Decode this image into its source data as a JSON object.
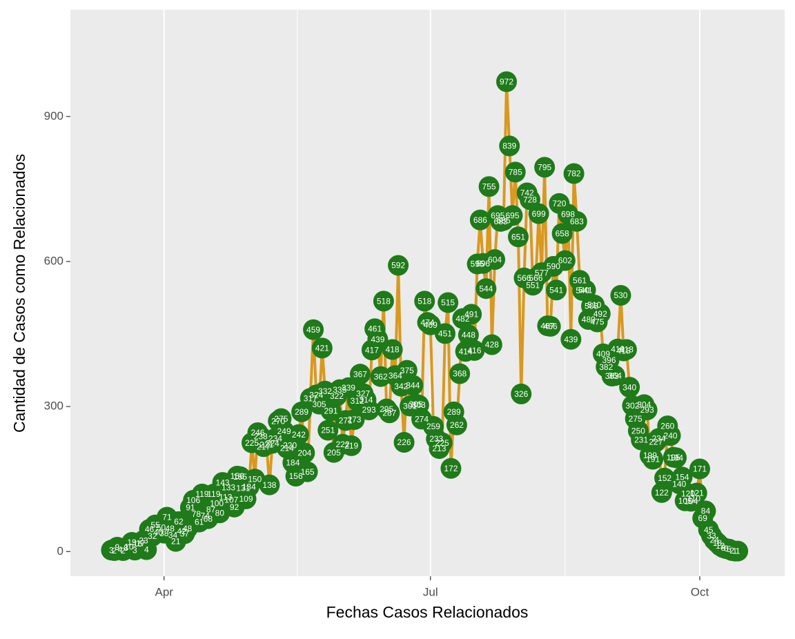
{
  "chart_data": {
    "type": "line",
    "x_label": "Fechas Casos Relacionados",
    "y_label": "Cantidad de Casos como Relacionados",
    "x": [
      73,
      74,
      75,
      76,
      77,
      78,
      79,
      80,
      81,
      82,
      83,
      84,
      85,
      86,
      87,
      88,
      89,
      90,
      91,
      92,
      93,
      94,
      95,
      96,
      97,
      98,
      99,
      100,
      101,
      102,
      103,
      104,
      105,
      106,
      107,
      108,
      109,
      110,
      111,
      112,
      113,
      114,
      115,
      116,
      117,
      118,
      119,
      120,
      121,
      122,
      123,
      124,
      125,
      126,
      127,
      128,
      129,
      130,
      131,
      132,
      133,
      134,
      135,
      136,
      137,
      138,
      139,
      140,
      141,
      142,
      143,
      144,
      145,
      146,
      147,
      148,
      149,
      150,
      151,
      152,
      153,
      154,
      155,
      156,
      157,
      158,
      159,
      160,
      161,
      162,
      163,
      164,
      165,
      166,
      167,
      168,
      169,
      170,
      171,
      172,
      173,
      174,
      175,
      176,
      177,
      178,
      179,
      180,
      181,
      182,
      183,
      184,
      185,
      186,
      187,
      188,
      189,
      190,
      191,
      192,
      193,
      194,
      195,
      196,
      197,
      198,
      199,
      200,
      201,
      202,
      203,
      204,
      205,
      206,
      207,
      208,
      209,
      210,
      211,
      212,
      213,
      214,
      215,
      216,
      217,
      218,
      219,
      220,
      221,
      222,
      223,
      224,
      225,
      226,
      227,
      228,
      229,
      230,
      231,
      232,
      233,
      234,
      235,
      236,
      237,
      238,
      239,
      240,
      241,
      242,
      243,
      244,
      245,
      246,
      247,
      248,
      249,
      250,
      251,
      252,
      253,
      254,
      255,
      256,
      257,
      258,
      259,
      260,
      261,
      262,
      263,
      264,
      265,
      266,
      267,
      268,
      269,
      270,
      271,
      272,
      273,
      274,
      275,
      276,
      277,
      278,
      279,
      280,
      281,
      282,
      283,
      284,
      285,
      286,
      287
    ],
    "values": [
      3,
      2,
      9,
      4,
      2,
      8,
      10,
      19,
      3,
      16,
      17,
      23,
      4,
      46,
      32,
      55,
      40,
      50,
      38,
      71,
      48,
      34,
      21,
      62,
      42,
      37,
      48,
      91,
      106,
      78,
      61,
      119,
      74,
      68,
      87,
      119,
      100,
      80,
      143,
      113,
      133,
      107,
      92,
      156,
      155,
      131,
      109,
      134,
      225,
      150,
      246,
      238,
      217,
      221,
      138,
      224,
      234,
      270,
      275,
      249,
      214,
      220,
      184,
      156,
      242,
      289,
      204,
      165,
      317,
      459,
      324,
      305,
      421,
      332,
      251,
      291,
      205,
      322,
      335,
      222,
      271,
      339,
      219,
      273,
      312,
      367,
      327,
      314,
      293,
      417,
      461,
      439,
      362,
      518,
      295,
      287,
      418,
      364,
      592,
      342,
      226,
      375,
      301,
      344,
      305,
      303,
      274,
      518,
      474,
      469,
      259,
      233,
      213,
      225,
      451,
      515,
      172,
      289,
      262,
      368,
      482,
      414,
      448,
      491,
      416,
      595,
      686,
      596,
      544,
      755,
      428,
      604,
      695,
      683,
      685,
      972,
      839,
      695,
      785,
      651,
      326,
      566,
      742,
      728,
      551,
      566,
      699,
      577,
      795,
      467,
      466,
      590,
      541,
      720,
      658,
      602,
      698,
      439,
      782,
      683,
      561,
      540,
      541,
      480,
      508,
      510,
      475,
      492,
      409,
      382,
      396,
      363,
      364,
      419,
      530,
      415,
      418,
      340,
      302,
      275,
      250,
      231,
      304,
      293,
      199,
      191,
      227,
      234,
      122,
      152,
      260,
      240,
      195,
      194,
      140,
      154,
      105,
      120,
      104,
      110,
      121,
      171,
      69,
      84,
      45,
      33,
      24,
      18,
      12,
      8,
      6,
      5,
      2,
      1,
      1
    ],
    "color": "#d9981e",
    "point_color": "#1f7a1a",
    "xlim": [
      59,
      303
    ],
    "xticks": [
      {
        "value": 91,
        "label": "Apr"
      },
      {
        "value": 182,
        "label": "Jul"
      },
      {
        "value": 274,
        "label": "Oct"
      }
    ],
    "ylim": [
      -51,
      1121
    ],
    "yticks": [
      0,
      300,
      600,
      900
    ],
    "grid": true
  }
}
